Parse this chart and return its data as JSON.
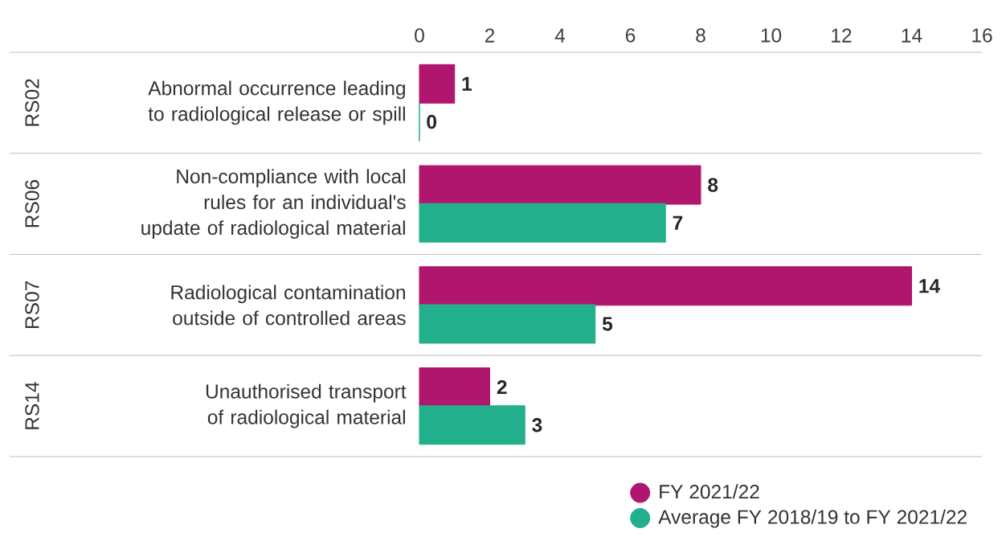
{
  "chart_data": {
    "type": "bar",
    "orientation": "horizontal",
    "categories": [
      "Abnormal occurrence leading to radiological release or spill",
      "Non-compliance with local rules for an individual's update of radiological material",
      "Radiological contamination outside of controlled areas",
      "Unauthorised transport of radiological material"
    ],
    "series": [
      {
        "name": "FY 2021/22",
        "color": "#b0166e",
        "values": [
          1,
          8,
          14,
          2
        ]
      },
      {
        "name": "Average FY 2018/19 to FY 2021/22",
        "color": "#22b08c",
        "values": [
          0,
          7,
          5,
          3
        ]
      }
    ],
    "annotations": [
      "RS02",
      "RS06",
      "RS07",
      "RS14"
    ],
    "xlim": [
      0,
      16
    ],
    "xticks": [
      0,
      2,
      4,
      6,
      8,
      10,
      12,
      14,
      16
    ],
    "data_labels": true,
    "legend": "bottom"
  }
}
